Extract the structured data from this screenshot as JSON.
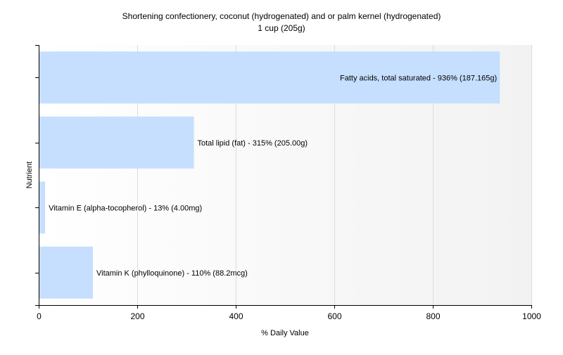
{
  "chart_data": {
    "type": "bar",
    "orientation": "horizontal",
    "title": "Shortening confectionery, coconut (hydrogenated) and or palm kernel (hydrogenated)",
    "subtitle": "1 cup (205g)",
    "xlabel": "% Daily Value",
    "ylabel": "Nutrient",
    "xlim": [
      0,
      1000
    ],
    "x_ticks": [
      0,
      200,
      400,
      600,
      800,
      1000
    ],
    "grid": true,
    "bar_color": "#c6dfff",
    "categories": [
      "Fatty acids, total saturated",
      "Total lipid (fat)",
      "Vitamin E (alpha-tocopherol)",
      "Vitamin K (phylloquinone)"
    ],
    "values": [
      936,
      315,
      13,
      110
    ],
    "data_labels": [
      "Fatty acids, total saturated - 936% (187.165g)",
      "Total lipid (fat) - 315% (205.00g)",
      "Vitamin E (alpha-tocopherol) - 13% (4.00mg)",
      "Vitamin K (phylloquinone) - 110% (88.2mcg)"
    ]
  }
}
